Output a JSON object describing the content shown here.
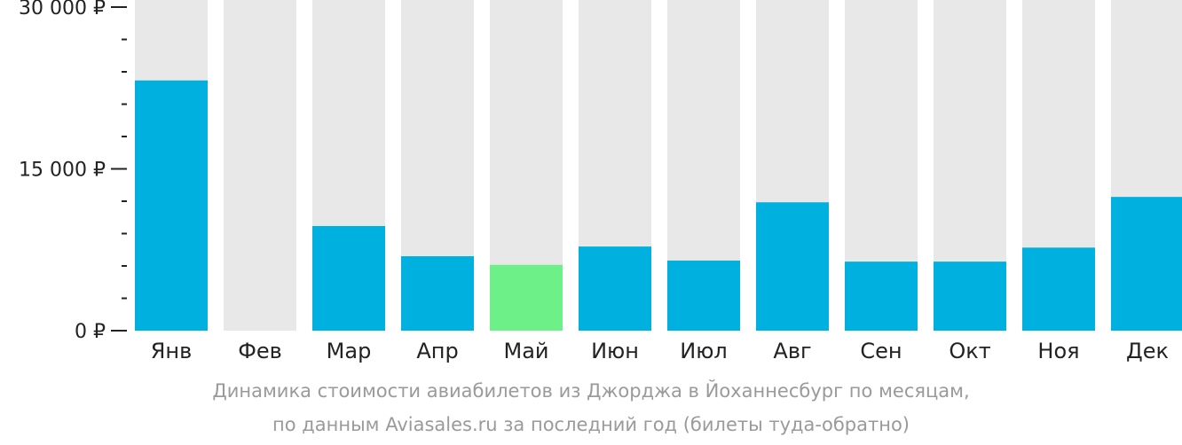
{
  "chart_data": {
    "type": "bar",
    "categories": [
      "Янв",
      "Фев",
      "Мар",
      "Апр",
      "Май",
      "Июн",
      "Июл",
      "Авг",
      "Сен",
      "Окт",
      "Ноя",
      "Дек"
    ],
    "values": [
      23200,
      0,
      9700,
      6900,
      6100,
      7800,
      6500,
      11900,
      6400,
      6400,
      7700,
      12400
    ],
    "ylim": [
      0,
      30000
    ],
    "y_ticks": [
      {
        "value": 0,
        "label": "0 ₽"
      },
      {
        "value": 15000,
        "label": "15 000 ₽"
      },
      {
        "value": 30000,
        "label": "30 000 ₽"
      }
    ],
    "y_minor_step": 3000,
    "highlight_index": 4,
    "grid": false,
    "legend": "none"
  },
  "colors": {
    "bar": "#00b0de",
    "highlight": "#6cf087",
    "background_column": "#e8e8e8",
    "axis": "#222222",
    "caption": "#9a9a9a"
  },
  "caption": {
    "line1": "Динамика стоимости авиабилетов из Джорджа в Йоханнесбург по месяцам,",
    "line2": "по данным Aviasales.ru за последний год (билеты туда-обратно)"
  }
}
